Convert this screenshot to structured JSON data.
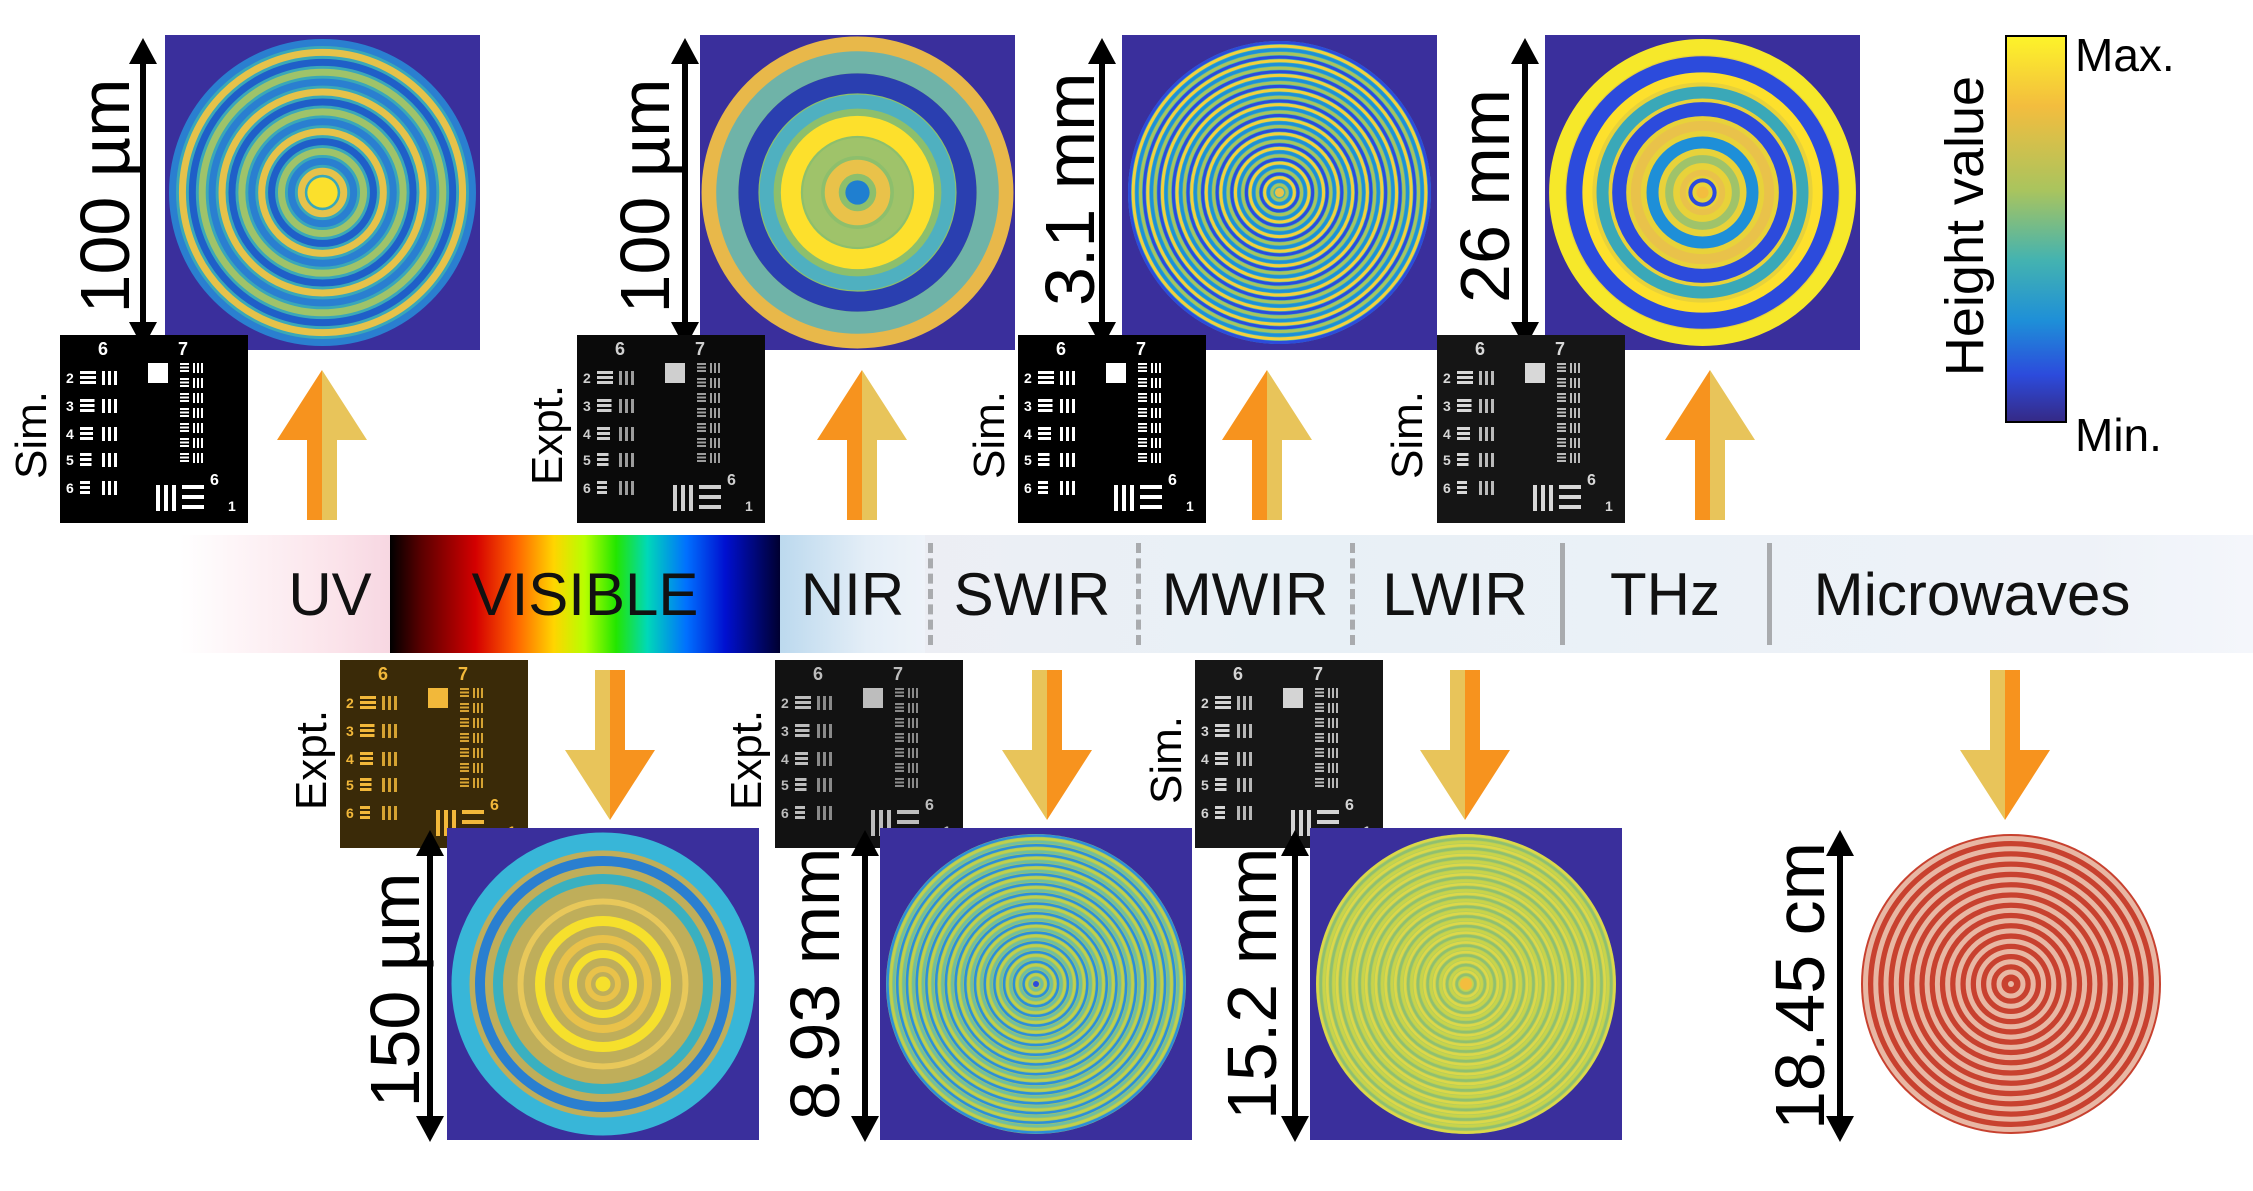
{
  "spectrum": {
    "bands": [
      {
        "id": "uv",
        "label": "UV"
      },
      {
        "id": "visible",
        "label": "VISIBLE"
      },
      {
        "id": "nir",
        "label": "NIR"
      },
      {
        "id": "swir",
        "label": "SWIR"
      },
      {
        "id": "mwir",
        "label": "MWIR"
      },
      {
        "id": "lwir",
        "label": "LWIR"
      },
      {
        "id": "thz",
        "label": "THz"
      },
      {
        "id": "microwaves",
        "label": "Microwaves"
      }
    ]
  },
  "colorbar": {
    "title": "Height value",
    "max_label": "Max.",
    "min_label": "Min.",
    "colors": [
      "#fdf32a",
      "#f3bd3e",
      "#a9c45e",
      "#44b3b0",
      "#1e8fd8",
      "#2c4bdc",
      "#352a87"
    ]
  },
  "top_panels": [
    {
      "band": "UV",
      "size_label": "100 µm",
      "target_kind": "Sim."
    },
    {
      "band": "VISIBLE",
      "size_label": "100 µm",
      "target_kind": "Expt."
    },
    {
      "band": "MWIR",
      "size_label": "3.1 mm",
      "target_kind": "Sim."
    },
    {
      "band": "LWIR",
      "size_label": "26 mm",
      "target_kind": "Sim."
    }
  ],
  "bottom_panels": [
    {
      "band": "VISIBLE",
      "size_label": "150 µm",
      "target_kind": "Expt."
    },
    {
      "band": "SWIR",
      "size_label": "8.93 mm",
      "target_kind": "Expt."
    },
    {
      "band": "LWIR",
      "size_label": "15.2 mm",
      "target_kind": "Sim."
    },
    {
      "band": "Microwaves",
      "size_label": "18.45 cm"
    }
  ],
  "target_numbers": {
    "group_a": "6",
    "group_b": "7",
    "e2": "2",
    "e3": "3",
    "e4": "4",
    "e5": "5",
    "e6": "6",
    "e1": "1"
  },
  "colors": {
    "lens_background": "#3a2f9c",
    "arrow_orange": "#f7931e",
    "arrow_gold": "#e8c45a",
    "microwave_red": "#c8412f",
    "microwave_light": "#e8b7a4"
  }
}
